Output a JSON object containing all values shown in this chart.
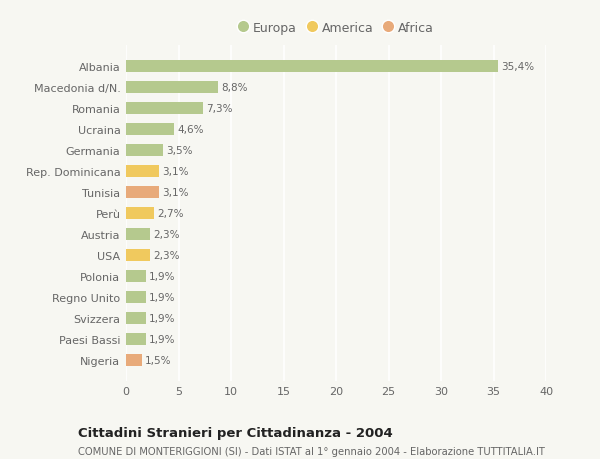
{
  "categories": [
    "Albania",
    "Macedonia d/N.",
    "Romania",
    "Ucraina",
    "Germania",
    "Rep. Dominicana",
    "Tunisia",
    "Perù",
    "Austria",
    "USA",
    "Polonia",
    "Regno Unito",
    "Svizzera",
    "Paesi Bassi",
    "Nigeria"
  ],
  "values": [
    35.4,
    8.8,
    7.3,
    4.6,
    3.5,
    3.1,
    3.1,
    2.7,
    2.3,
    2.3,
    1.9,
    1.9,
    1.9,
    1.9,
    1.5
  ],
  "labels": [
    "35,4%",
    "8,8%",
    "7,3%",
    "4,6%",
    "3,5%",
    "3,1%",
    "3,1%",
    "2,7%",
    "2,3%",
    "2,3%",
    "1,9%",
    "1,9%",
    "1,9%",
    "1,9%",
    "1,5%"
  ],
  "continent": [
    "Europa",
    "Europa",
    "Europa",
    "Europa",
    "Europa",
    "America",
    "Africa",
    "America",
    "Europa",
    "America",
    "Europa",
    "Europa",
    "Europa",
    "Europa",
    "Africa"
  ],
  "color_europa": "#b5c98e",
  "color_america": "#f0c95e",
  "color_africa": "#e8aa7a",
  "bg_color": "#f7f7f2",
  "plot_bg_color": "#f7f7f2",
  "grid_color": "#ffffff",
  "text_color": "#666666",
  "title": "Cittadini Stranieri per Cittadinanza - 2004",
  "subtitle": "COMUNE DI MONTERIGGIONI (SI) - Dati ISTAT al 1° gennaio 2004 - Elaborazione TUTTITALIA.IT",
  "xlim": [
    0,
    40
  ],
  "xticks": [
    0,
    5,
    10,
    15,
    20,
    25,
    30,
    35,
    40
  ],
  "legend_europa": "Europa",
  "legend_america": "America",
  "legend_africa": "Africa",
  "bar_height": 0.55
}
